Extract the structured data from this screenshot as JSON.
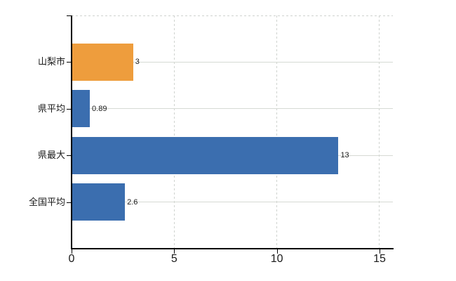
{
  "chart_data": {
    "type": "bar",
    "orientation": "horizontal",
    "title": "",
    "xlabel": "",
    "ylabel": "",
    "categories": [
      "山梨市",
      "県平均",
      "県最大",
      "全国平均"
    ],
    "values": [
      3,
      0.89,
      13,
      2.6
    ],
    "value_labels": [
      "3",
      "0.89",
      "13",
      "2.6"
    ],
    "bar_colors": [
      "#ee9d3d",
      "#3b6eaf",
      "#3b6eaf",
      "#3b6eaf"
    ],
    "x_ticks": [
      0,
      5,
      10,
      15
    ],
    "x_tick_labels": [
      "0",
      "5",
      "10",
      "15"
    ],
    "xlim": [
      0,
      15.65
    ],
    "grid": true,
    "legend": "none",
    "layout_hints": {
      "vertical_gridlines": "dashed",
      "horizontal_gridlines": "solid",
      "plot_top_border": "dashed",
      "highlighted_category": "山梨市"
    },
    "colors": {
      "bar_highlight": "#ee9d3d",
      "bar_default": "#3b6eaf",
      "gridline_solid": "#d6dad4",
      "gridline_dashed": "#cfd3cf",
      "axis": "#000000",
      "text": "#1a1a1a",
      "background": "#ffffff"
    }
  }
}
